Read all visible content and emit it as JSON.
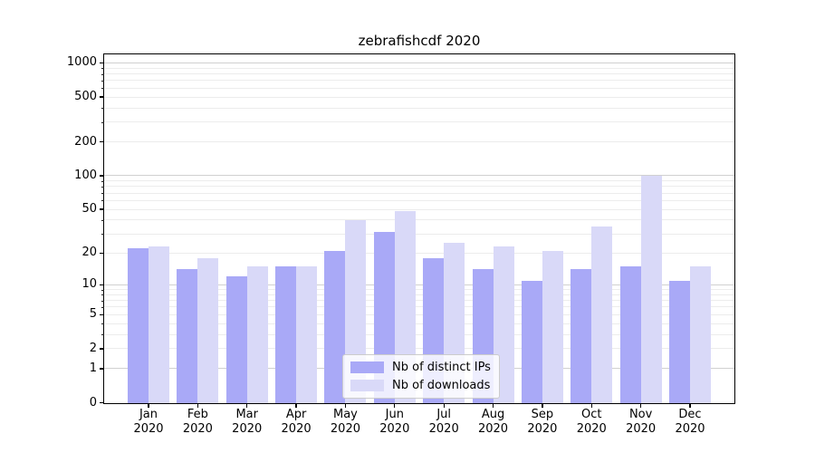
{
  "title": "zebrafishcdf 2020",
  "chart_data": {
    "type": "bar",
    "title": "zebrafishcdf 2020",
    "categories": [
      "Jan 2020",
      "Feb 2020",
      "Mar 2020",
      "Apr 2020",
      "May 2020",
      "Jun 2020",
      "Jul 2020",
      "Aug 2020",
      "Sep 2020",
      "Oct 2020",
      "Nov 2020",
      "Dec 2020"
    ],
    "x_tick_months": [
      "Jan",
      "Feb",
      "Mar",
      "Apr",
      "May",
      "Jun",
      "Jul",
      "Aug",
      "Sep",
      "Oct",
      "Nov",
      "Dec"
    ],
    "x_tick_year": "2020",
    "series": [
      {
        "name": "Nb of distinct IPs",
        "color": "#a9a9f7",
        "values": [
          22,
          14,
          12,
          15,
          21,
          31,
          18,
          14,
          11,
          14,
          15,
          11
        ]
      },
      {
        "name": "Nb of downloads",
        "color": "#d9d9f8",
        "values": [
          23,
          18,
          15,
          15,
          40,
          48,
          25,
          23,
          21,
          35,
          100,
          15
        ]
      }
    ],
    "y_ticks": [
      0,
      1,
      2,
      5,
      10,
      20,
      50,
      100,
      200,
      500,
      1000
    ],
    "y_scale": "log10(1+value)",
    "ylim": [
      0,
      1190
    ],
    "grid": true,
    "legend": {
      "position": "lower-center",
      "labels": [
        "Nb of distinct IPs",
        "Nb of downloads"
      ]
    },
    "grid_colors": {
      "major": "#d0d0d0",
      "minor": "#ececec"
    }
  }
}
